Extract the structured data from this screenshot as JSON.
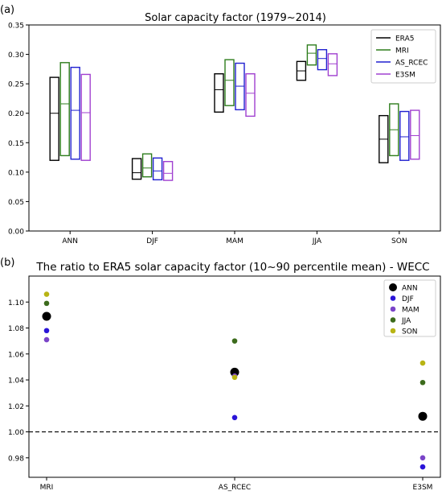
{
  "figure": {
    "panel_a_label": "(a)",
    "panel_b_label": "(b)"
  },
  "chart_data": [
    {
      "type": "box",
      "title": "Solar capacity factor (1979~2014)",
      "xlabel": "",
      "ylabel": "",
      "categories": [
        "ANN",
        "DJF",
        "MAM",
        "JJA",
        "SON"
      ],
      "ylim": [
        0.0,
        0.35
      ],
      "yticks": [
        "0.00",
        "0.05",
        "0.10",
        "0.15",
        "0.20",
        "0.25",
        "0.30",
        "0.35"
      ],
      "grid": false,
      "legend_position": "top-right",
      "box_values_note": "",
      "series": [
        {
          "name": "ERA5",
          "color": "#000000",
          "boxes": [
            {
              "low": 0.12,
              "mid": 0.2,
              "high": 0.261
            },
            {
              "low": 0.088,
              "mid": 0.099,
              "high": 0.123
            },
            {
              "low": 0.202,
              "mid": 0.24,
              "high": 0.267
            },
            {
              "low": 0.256,
              "mid": 0.272,
              "high": 0.288
            },
            {
              "low": 0.116,
              "mid": 0.156,
              "high": 0.196
            }
          ]
        },
        {
          "name": "MRI",
          "color": "#2e7d1c",
          "boxes": [
            {
              "low": 0.128,
              "mid": 0.216,
              "high": 0.286
            },
            {
              "low": 0.092,
              "mid": 0.107,
              "high": 0.131
            },
            {
              "low": 0.213,
              "mid": 0.256,
              "high": 0.291
            },
            {
              "low": 0.282,
              "mid": 0.302,
              "high": 0.316
            },
            {
              "low": 0.128,
              "mid": 0.172,
              "high": 0.216
            }
          ]
        },
        {
          "name": "AS_RCEC",
          "color": "#2020d0",
          "boxes": [
            {
              "low": 0.122,
              "mid": 0.205,
              "high": 0.278
            },
            {
              "low": 0.087,
              "mid": 0.102,
              "high": 0.124
            },
            {
              "low": 0.206,
              "mid": 0.246,
              "high": 0.285
            },
            {
              "low": 0.274,
              "mid": 0.293,
              "high": 0.308
            },
            {
              "low": 0.12,
              "mid": 0.16,
              "high": 0.203
            }
          ]
        },
        {
          "name": "E3SM",
          "color": "#a040d0",
          "boxes": [
            {
              "low": 0.12,
              "mid": 0.201,
              "high": 0.266
            },
            {
              "low": 0.086,
              "mid": 0.098,
              "high": 0.118
            },
            {
              "low": 0.195,
              "mid": 0.234,
              "high": 0.267
            },
            {
              "low": 0.264,
              "mid": 0.284,
              "high": 0.301
            },
            {
              "low": 0.122,
              "mid": 0.162,
              "high": 0.205
            }
          ]
        }
      ]
    },
    {
      "type": "scatter",
      "title": "The ratio to ERA5 solar capacity factor (10~90 percentile mean) - WECC",
      "xlabel": "",
      "ylabel": "",
      "categories": [
        "MRI",
        "AS_RCEC",
        "E3SM"
      ],
      "ylim": [
        0.965,
        1.12
      ],
      "yticks": [
        "0.98",
        "1.00",
        "1.02",
        "1.04",
        "1.06",
        "1.08",
        "1.10"
      ],
      "reference_line": 1.0,
      "grid": false,
      "legend_position": "top-right",
      "series": [
        {
          "name": "ANN",
          "color": "#000000",
          "values": [
            1.089,
            1.046,
            1.012
          ]
        },
        {
          "name": "DJF",
          "color": "#2a14d8",
          "values": [
            1.078,
            1.011,
            0.973
          ]
        },
        {
          "name": "MAM",
          "color": "#7a44c8",
          "values": [
            1.071,
            1.043,
            0.98
          ]
        },
        {
          "name": "JJA",
          "color": "#3c6b1c",
          "values": [
            1.099,
            1.07,
            1.038
          ]
        },
        {
          "name": "SON",
          "color": "#b8b414",
          "values": [
            1.106,
            1.042,
            1.053
          ]
        }
      ]
    }
  ]
}
